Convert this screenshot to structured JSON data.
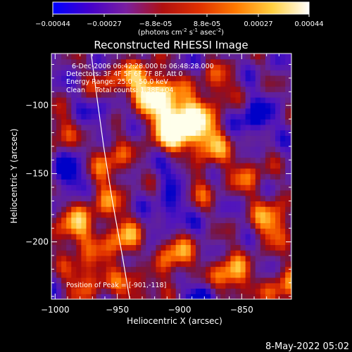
{
  "colorbar": {
    "ticks": [
      "-0.00044",
      "-0.00027",
      "-8.8e-05",
      "8.8e-05",
      "0.00027",
      "0.00044"
    ],
    "units_prefix": "(photons cm",
    "units_exp1": "-2",
    "units_mid": " s",
    "units_exp2": "-1",
    "units_mid2": " asec",
    "units_exp3": "-2",
    "units_suffix": ")",
    "colors": [
      "#0000ff",
      "#4400cc",
      "#7a1fa0",
      "#b01010",
      "#e03000",
      "#ff7a00",
      "#ffd040",
      "#ffffff"
    ]
  },
  "plot": {
    "title": "Reconstructed RHESSI Image",
    "info_lines": [
      "6-Dec-2006 06:42:28.000 to 06:48:28.000",
      "Detectors: 3F 4F 5F 6F 7F 8F, Att 0",
      "Energy Range: 25.0 - 50.0 keV",
      "Clean     Total counts: 1.38E+04"
    ],
    "peak_label": "Position of Peak = [-901,-118]",
    "xlabel": "Heliocentric X (arcsec)",
    "ylabel": "Heliocentric Y (arcsec)"
  },
  "footer": {
    "date": "8-May-2022 05:02"
  },
  "chart_data": {
    "type": "heatmap",
    "title": "Reconstructed RHESSI Image",
    "xlabel": "Heliocentric X (arcsec)",
    "ylabel": "Heliocentric Y (arcsec)",
    "xlim": [
      -1003,
      -810
    ],
    "ylim": [
      -242,
      -62
    ],
    "x_ticks": [
      -1000,
      -950,
      -900,
      -850
    ],
    "x_tick_labels": [
      "−1000",
      "−950",
      "−900",
      "−850"
    ],
    "y_ticks": [
      -100,
      -150,
      -200
    ],
    "y_tick_labels": [
      "−100",
      "−150",
      "−200"
    ],
    "colorbar_range": [
      -0.00044,
      0.00044
    ],
    "peak_position": [
      -901,
      -118
    ],
    "limb_curve": [
      [
        -971,
        -62
      ],
      [
        -967,
        -90
      ],
      [
        -961,
        -130
      ],
      [
        -954,
        -170
      ],
      [
        -946,
        -210
      ],
      [
        -940,
        -242
      ]
    ],
    "grid": false
  }
}
